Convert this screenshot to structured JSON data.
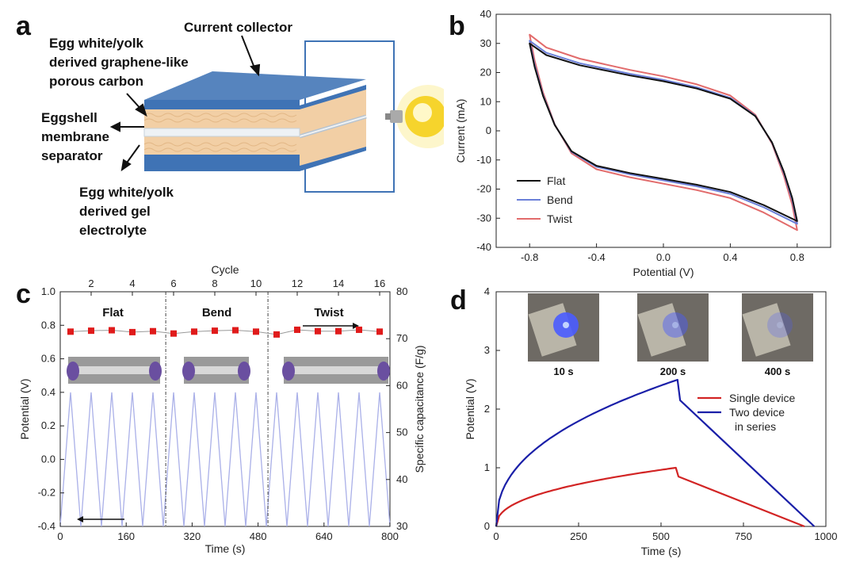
{
  "panels": {
    "a": "a",
    "b": "b",
    "c": "c",
    "d": "d"
  },
  "schematic": {
    "labels": {
      "current_collector": "Current collector",
      "carbon_1": "Egg white/yolk",
      "carbon_2": "derived graphene-like",
      "carbon_3": "porous carbon",
      "separator_1": "Eggshell",
      "separator_2": "membrane",
      "separator_3": "separator",
      "electrolyte_1": "Egg white/yolk",
      "electrolyte_2": "derived gel",
      "electrolyte_3": "electrolyte"
    },
    "colors": {
      "collector": "#3f73b5",
      "carbon": "#f2cfa5",
      "stripe": "#f7e8c8",
      "separator": "#eef2f5",
      "wire": "#3f73b5",
      "bulb": "#f6d42c"
    }
  },
  "chart_data": [
    {
      "id": "b",
      "type": "line",
      "title": "",
      "xlabel": "Potential (V)",
      "ylabel": "Current (mA)",
      "xlim": [
        -1.0,
        1.0
      ],
      "ylim": [
        -40,
        40
      ],
      "xticks": [
        -0.8,
        -0.4,
        0.0,
        0.4,
        0.8
      ],
      "xtick_labels": [
        "-0.8",
        "-0.4",
        "0.0",
        "0.4",
        "0.8"
      ],
      "yticks": [
        -40,
        -30,
        -20,
        -10,
        0,
        10,
        20,
        30,
        40
      ],
      "ytick_labels": [
        "-40",
        "-30",
        "-20",
        "-10",
        "0",
        "10",
        "20",
        "30",
        "40"
      ],
      "legend_position": "bottom-left",
      "series": [
        {
          "name": "Flat",
          "color": "#111111",
          "scale": 1.0,
          "upper": [
            [
              -0.8,
              30
            ],
            [
              -0.7,
              26
            ],
            [
              -0.5,
              22.5
            ],
            [
              -0.2,
              19
            ],
            [
              0,
              17
            ],
            [
              0.2,
              14.5
            ],
            [
              0.4,
              11
            ],
            [
              0.55,
              5
            ],
            [
              0.65,
              -4
            ],
            [
              0.72,
              -14
            ],
            [
              0.77,
              -23
            ],
            [
              0.8,
              -31
            ]
          ],
          "lower": [
            [
              0.8,
              -31
            ],
            [
              0.6,
              -25.5
            ],
            [
              0.4,
              -21
            ],
            [
              0.2,
              -18.5
            ],
            [
              0,
              -16.5
            ],
            [
              -0.2,
              -14.5
            ],
            [
              -0.4,
              -12
            ],
            [
              -0.55,
              -7
            ],
            [
              -0.65,
              2
            ],
            [
              -0.72,
              12
            ],
            [
              -0.77,
              22
            ],
            [
              -0.8,
              30
            ]
          ]
        },
        {
          "name": "Bend",
          "color": "#6b7fd8",
          "scale": 1.03,
          "upper": [
            [
              -0.8,
              30
            ],
            [
              -0.7,
              26
            ],
            [
              -0.5,
              22.5
            ],
            [
              -0.2,
              19
            ],
            [
              0,
              17
            ],
            [
              0.2,
              14.5
            ],
            [
              0.4,
              11
            ],
            [
              0.55,
              5
            ],
            [
              0.65,
              -4
            ],
            [
              0.72,
              -14
            ],
            [
              0.77,
              -23
            ],
            [
              0.8,
              -31
            ]
          ],
          "lower": [
            [
              0.8,
              -31
            ],
            [
              0.6,
              -25.5
            ],
            [
              0.4,
              -21
            ],
            [
              0.2,
              -18.5
            ],
            [
              0,
              -16.5
            ],
            [
              -0.2,
              -14.5
            ],
            [
              -0.4,
              -12
            ],
            [
              -0.55,
              -7
            ],
            [
              -0.65,
              2
            ],
            [
              -0.72,
              12
            ],
            [
              -0.77,
              22
            ],
            [
              -0.8,
              30
            ]
          ]
        },
        {
          "name": "Twist",
          "color": "#e26b6b",
          "scale": 1.1,
          "upper": [
            [
              -0.8,
              30
            ],
            [
              -0.7,
              26
            ],
            [
              -0.5,
              22.5
            ],
            [
              -0.2,
              19
            ],
            [
              0,
              17
            ],
            [
              0.2,
              14.5
            ],
            [
              0.4,
              11
            ],
            [
              0.55,
              5
            ],
            [
              0.65,
              -4
            ],
            [
              0.72,
              -14
            ],
            [
              0.77,
              -23
            ],
            [
              0.8,
              -31
            ]
          ],
          "lower": [
            [
              0.8,
              -31
            ],
            [
              0.6,
              -25.5
            ],
            [
              0.4,
              -21
            ],
            [
              0.2,
              -18.5
            ],
            [
              0,
              -16.5
            ],
            [
              -0.2,
              -14.5
            ],
            [
              -0.4,
              -12
            ],
            [
              -0.55,
              -7
            ],
            [
              -0.65,
              2
            ],
            [
              -0.72,
              12
            ],
            [
              -0.77,
              22
            ],
            [
              -0.8,
              30
            ]
          ]
        }
      ]
    },
    {
      "id": "c",
      "type": "line",
      "xlabel": "Time (s)",
      "ylabel": "Potential (V)",
      "y2label": "Specific capacitance (F/g)",
      "top_xlabel": "Cycle",
      "xlim": [
        0,
        800
      ],
      "ylim": [
        -0.4,
        1.0
      ],
      "y2lim": [
        30,
        80
      ],
      "xticks": [
        0,
        160,
        320,
        480,
        640,
        800
      ],
      "xtick_labels": [
        "0",
        "160",
        "320",
        "480",
        "640",
        "800"
      ],
      "yticks": [
        -0.4,
        -0.2,
        0.0,
        0.2,
        0.4,
        0.6,
        0.8,
        1.0
      ],
      "ytick_labels": [
        "-0.4",
        "-0.2",
        "0.0",
        "0.2",
        "0.4",
        "0.6",
        "0.8",
        "1.0"
      ],
      "y2ticks": [
        30,
        40,
        50,
        60,
        70,
        80
      ],
      "y2tick_labels": [
        "30",
        "40",
        "50",
        "60",
        "70",
        "80"
      ],
      "cycle_ticks": [
        2,
        4,
        6,
        8,
        10,
        12,
        14,
        16
      ],
      "cycle_tick_labels": [
        "2",
        "4",
        "6",
        "8",
        "10",
        "12",
        "14",
        "16"
      ],
      "cycle_range": [
        0.5,
        16.5
      ],
      "region_labels": [
        "Flat",
        "Bend",
        "Twist"
      ],
      "region_dividers_s": [
        256,
        504
      ],
      "cycles": 16,
      "cycle_period_s": 50,
      "potential_min": -0.4,
      "potential_max": 0.4,
      "capacitance_cycles": [
        1,
        2,
        3,
        4,
        5,
        6,
        7,
        8,
        9,
        10,
        11,
        12,
        13,
        14,
        15,
        16
      ],
      "capacitance_values": [
        71.5,
        71.7,
        71.8,
        71.4,
        71.6,
        71.1,
        71.5,
        71.7,
        71.8,
        71.5,
        70.9,
        71.9,
        71.6,
        71.6,
        71.9,
        71.5
      ],
      "line_color": "#aab0e8",
      "marker_color": "#e01b1b"
    },
    {
      "id": "d",
      "type": "line",
      "xlabel": "Time (s)",
      "ylabel": "Potential (V)",
      "xlim": [
        0,
        1000
      ],
      "ylim": [
        0,
        4
      ],
      "xticks": [
        0,
        250,
        500,
        750,
        1000
      ],
      "xtick_labels": [
        "0",
        "250",
        "500",
        "750",
        "1000"
      ],
      "yticks": [
        0,
        1,
        2,
        3,
        4
      ],
      "ytick_labels": [
        "0",
        "1",
        "2",
        "3",
        "4"
      ],
      "legend_position": "right",
      "series": [
        {
          "name": "Single device",
          "color": "#d22424",
          "vmax": 1.0,
          "drop": 0.15,
          "t_charge": 545,
          "t_end": 935
        },
        {
          "name": "Two device",
          "name_line2": "in series",
          "color": "#1a1fa8",
          "vmax": 2.5,
          "drop": 0.35,
          "t_charge": 550,
          "t_end": 965
        }
      ],
      "photo_captions": [
        "10 s",
        "200 s",
        "400 s"
      ]
    }
  ]
}
